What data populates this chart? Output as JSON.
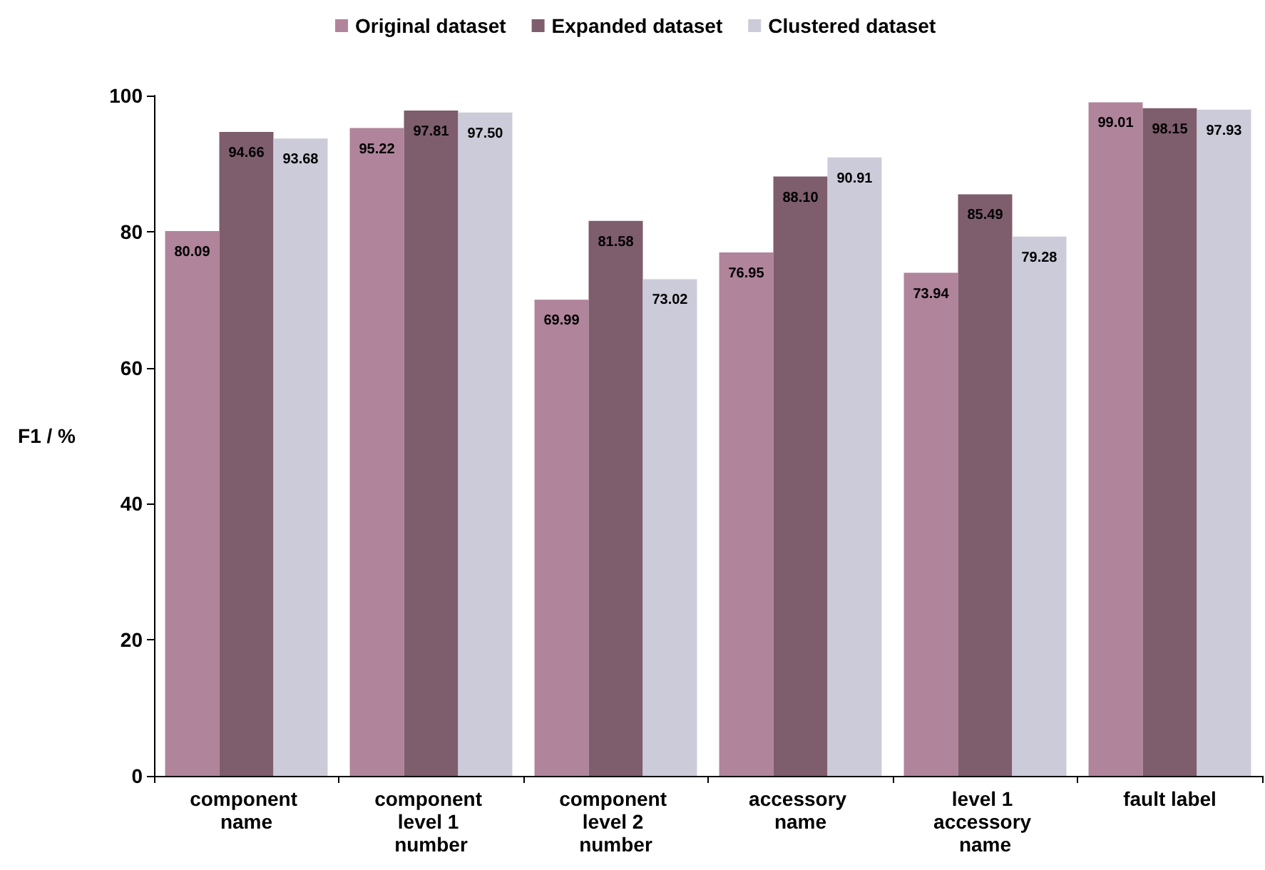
{
  "chart_data": {
    "type": "bar",
    "ylabel": "F1 / %",
    "categories": [
      "component name",
      "component level 1 number",
      "component level 2 number",
      "accessory name",
      "level 1 accessory name",
      "fault label"
    ],
    "series": [
      {
        "name": "Original dataset",
        "color": "#b0849b",
        "values": [
          80.09,
          95.22,
          69.99,
          76.95,
          73.94,
          99.01
        ],
        "value_labels": [
          "80.09",
          "95.22",
          "69.99",
          "76.95",
          "73.94",
          "99.01"
        ]
      },
      {
        "name": "Expanded dataset",
        "color": "#7e5d6d",
        "values": [
          94.66,
          97.81,
          81.58,
          88.1,
          85.49,
          98.15
        ],
        "value_labels": [
          "94.66",
          "97.81",
          "81.58",
          "88.10",
          "85.49",
          "98.15"
        ]
      },
      {
        "name": "Clustered dataset",
        "color": "#cccbd9",
        "values": [
          93.68,
          97.5,
          73.02,
          90.91,
          79.28,
          97.93
        ],
        "value_labels": [
          "93.68",
          "97.50",
          "73.02",
          "90.91",
          "79.28",
          "97.93"
        ]
      }
    ],
    "ylim": [
      0,
      100
    ],
    "yticks": [
      0,
      20,
      40,
      60,
      80,
      100
    ],
    "grid": false,
    "legend": "top"
  }
}
